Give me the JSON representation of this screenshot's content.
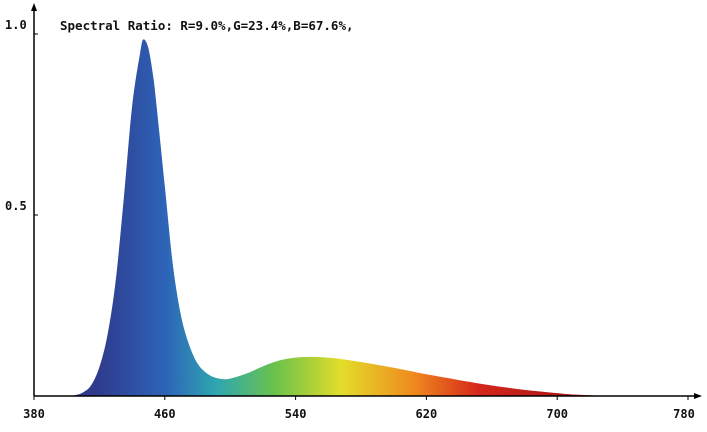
{
  "chart_data": {
    "type": "area",
    "annotation": "Spectral Ratio:  R=9.0%,G=23.4%,B=67.6%,",
    "x_ticks": [
      380,
      460,
      540,
      620,
      700,
      780
    ],
    "y_ticks": [
      "1.0",
      "0.5"
    ],
    "xlim": [
      380,
      780
    ],
    "ylim": [
      0,
      1.0
    ],
    "grid": false,
    "x": [
      380,
      400,
      405,
      410,
      415,
      420,
      425,
      430,
      435,
      440,
      445,
      447,
      450,
      453,
      455,
      460,
      465,
      470,
      475,
      480,
      485,
      490,
      495,
      500,
      510,
      520,
      530,
      540,
      550,
      560,
      570,
      580,
      590,
      600,
      610,
      620,
      640,
      660,
      680,
      700,
      710,
      720,
      730,
      780
    ],
    "y": [
      0,
      0,
      0.002,
      0.01,
      0.03,
      0.08,
      0.17,
      0.32,
      0.55,
      0.8,
      0.95,
      0.985,
      0.96,
      0.88,
      0.8,
      0.58,
      0.36,
      0.22,
      0.14,
      0.09,
      0.065,
      0.052,
      0.047,
      0.048,
      0.062,
      0.082,
      0.098,
      0.106,
      0.108,
      0.106,
      0.101,
      0.094,
      0.086,
      0.078,
      0.069,
      0.06,
      0.044,
      0.029,
      0.017,
      0.008,
      0.004,
      0.002,
      0.001,
      0
    ],
    "colors": {
      "axis": "#000000",
      "violet": "#2f3c8e",
      "blue": "#2d63b8",
      "cyan": "#2ea7b0",
      "green": "#6cc24a",
      "yellow": "#e3dd2a",
      "orange": "#ef8a1e",
      "red": "#d5271b",
      "dark_red": "#b01717"
    }
  }
}
